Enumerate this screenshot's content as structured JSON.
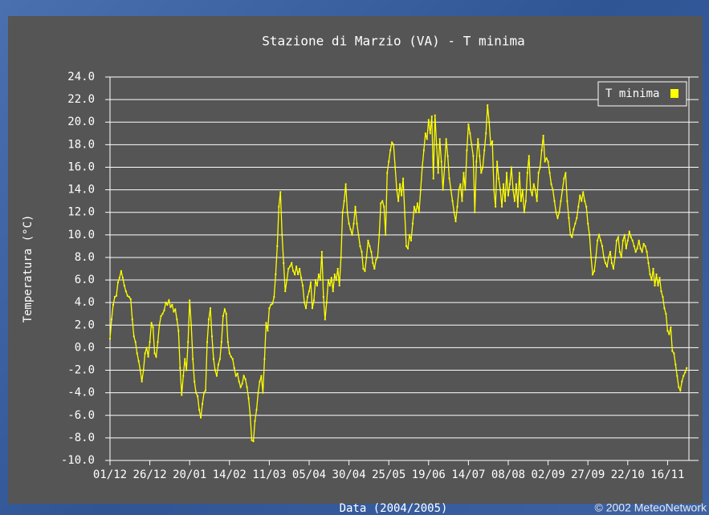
{
  "chart_data": {
    "type": "line",
    "title": "Stazione di Marzio (VA) - T minima",
    "x_label": "Data (2004/2005)",
    "y_label": "Temperatura (°C)",
    "credit": "© 2002 MeteoNetwork",
    "legend": "top-right",
    "grid": true,
    "ylim": [
      -10,
      24
    ],
    "yticks": [
      {
        "value": -10,
        "label": "-10.0"
      },
      {
        "value": -8,
        "label": "-8.0"
      },
      {
        "value": -6,
        "label": "-6.0"
      },
      {
        "value": -4,
        "label": "-4.0"
      },
      {
        "value": -2,
        "label": "-2.0"
      },
      {
        "value": 0,
        "label": "0.0"
      },
      {
        "value": 2,
        "label": "2.0"
      },
      {
        "value": 4,
        "label": "4.0"
      },
      {
        "value": 6,
        "label": "6.0"
      },
      {
        "value": 8,
        "label": "8.0"
      },
      {
        "value": 10,
        "label": "10.0"
      },
      {
        "value": 12,
        "label": "12.0"
      },
      {
        "value": 14,
        "label": "14.0"
      },
      {
        "value": 16,
        "label": "16.0"
      },
      {
        "value": 18,
        "label": "18.0"
      },
      {
        "value": 20,
        "label": "20.0"
      },
      {
        "value": 22,
        "label": "22.0"
      },
      {
        "value": 24,
        "label": "24.0"
      }
    ],
    "categories": [
      "01/12",
      null,
      null,
      null,
      null,
      null,
      null,
      null,
      null,
      null,
      null,
      null,
      null,
      null,
      null,
      null,
      null,
      null,
      null,
      null,
      null,
      null,
      null,
      null,
      null,
      "26/12",
      null,
      null,
      null,
      null,
      null,
      null,
      null,
      null,
      null,
      null,
      null,
      null,
      null,
      null,
      null,
      null,
      null,
      null,
      null,
      null,
      null,
      null,
      null,
      null,
      "20/01",
      null,
      null,
      null,
      null,
      null,
      null,
      null,
      null,
      null,
      null,
      null,
      null,
      null,
      null,
      null,
      null,
      null,
      null,
      null,
      null,
      null,
      null,
      null,
      null,
      "14/02",
      null,
      null,
      null,
      null,
      null,
      null,
      null,
      null,
      null,
      null,
      null,
      null,
      null,
      null,
      null,
      null,
      null,
      null,
      null,
      null,
      null,
      null,
      null,
      null,
      "11/03",
      null,
      null,
      null,
      null,
      null,
      null,
      null,
      null,
      null,
      null,
      null,
      null,
      null,
      null,
      null,
      null,
      null,
      null,
      null,
      null,
      null,
      null,
      null,
      null,
      "05/04",
      null,
      null,
      null,
      null,
      null,
      null,
      null,
      null,
      null,
      null,
      null,
      null,
      null,
      null,
      null,
      null,
      null,
      null,
      null,
      null,
      null,
      null,
      null,
      null,
      "30/04",
      null,
      null,
      null,
      null,
      null,
      null,
      null,
      null,
      null,
      null,
      null,
      null,
      null,
      null,
      null,
      null,
      null,
      null,
      null,
      null,
      null,
      null,
      null,
      null,
      "25/05",
      null,
      null,
      null,
      null,
      null,
      null,
      null,
      null,
      null,
      null,
      null,
      null,
      null,
      null,
      null,
      null,
      null,
      null,
      null,
      null,
      null,
      null,
      null,
      null,
      "19/06",
      null,
      null,
      null,
      null,
      null,
      null,
      null,
      null,
      null,
      null,
      null,
      null,
      null,
      null,
      null,
      null,
      null,
      null,
      null,
      null,
      null,
      null,
      null,
      null,
      "14/07",
      null,
      null,
      null,
      null,
      null,
      null,
      null,
      null,
      null,
      null,
      null,
      null,
      null,
      null,
      null,
      null,
      null,
      null,
      null,
      null,
      null,
      null,
      null,
      null,
      "08/08",
      null,
      null,
      null,
      null,
      null,
      null,
      null,
      null,
      null,
      null,
      null,
      null,
      null,
      null,
      null,
      null,
      null,
      null,
      null,
      null,
      null,
      null,
      null,
      null,
      "02/09",
      null,
      null,
      null,
      null,
      null,
      null,
      null,
      null,
      null,
      null,
      null,
      null,
      null,
      null,
      null,
      null,
      null,
      null,
      null,
      null,
      null,
      null,
      null,
      null,
      "27/09",
      null,
      null,
      null,
      null,
      null,
      null,
      null,
      null,
      null,
      null,
      null,
      null,
      null,
      null,
      null,
      null,
      null,
      null,
      null,
      null,
      null,
      null,
      null,
      null,
      "22/10",
      null,
      null,
      null,
      null,
      null,
      null,
      null,
      null,
      null,
      null,
      null,
      null,
      null,
      null,
      null,
      null,
      null,
      null,
      null,
      null,
      null,
      null,
      null,
      null,
      "16/11",
      null,
      null,
      null,
      null,
      null,
      null,
      null,
      null,
      null,
      null,
      null,
      null
    ],
    "series": [
      {
        "name": "T minima",
        "color": "#ffff00",
        "values": [
          0.8,
          2.5,
          3.8,
          4.5,
          4.6,
          5.8,
          6.2,
          6.8,
          6.2,
          5.5,
          5.0,
          4.6,
          4.5,
          4.3,
          2.5,
          1.0,
          0.5,
          -0.5,
          -1.2,
          -2.0,
          -3.0,
          -2.0,
          -0.5,
          0.0,
          -0.8,
          0.5,
          2.2,
          1.8,
          -0.5,
          -0.8,
          0.5,
          2.0,
          2.8,
          3.0,
          3.3,
          4.0,
          3.8,
          4.2,
          3.6,
          3.8,
          3.2,
          3.4,
          2.5,
          1.5,
          -1.8,
          -4.2,
          -2.5,
          -1.0,
          -2.0,
          0.5,
          4.2,
          2.0,
          -1.0,
          -3.0,
          -4.0,
          -4.3,
          -5.5,
          -6.2,
          -5.0,
          -4.0,
          -3.8,
          0.5,
          2.5,
          3.5,
          1.0,
          -1.0,
          -2.0,
          -2.5,
          -1.5,
          -1.0,
          0.5,
          2.8,
          3.4,
          3.0,
          0.5,
          -0.5,
          -0.8,
          -1.0,
          -1.8,
          -2.5,
          -2.3,
          -3.0,
          -3.5,
          -3.2,
          -2.5,
          -2.8,
          -3.5,
          -4.5,
          -6.0,
          -8.2,
          -8.3,
          -6.5,
          -5.5,
          -4.0,
          -3.0,
          -2.5,
          -4.0,
          -1.0,
          2.2,
          1.5,
          3.5,
          3.8,
          3.9,
          4.5,
          6.5,
          9.0,
          12.5,
          13.8,
          10.0,
          7.5,
          5.0,
          6.0,
          7.0,
          7.2,
          7.5,
          6.8,
          6.5,
          7.2,
          6.5,
          7.0,
          6.2,
          5.5,
          4.0,
          3.5,
          4.5,
          5.0,
          5.8,
          3.5,
          4.2,
          6.0,
          5.5,
          6.5,
          6.0,
          8.5,
          4.5,
          2.5,
          4.0,
          6.0,
          5.5,
          6.2,
          5.0,
          6.5,
          6.0,
          7.0,
          5.5,
          8.0,
          12.0,
          13.0,
          14.5,
          12.0,
          11.0,
          10.5,
          10.0,
          11.0,
          12.5,
          11.0,
          10.0,
          9.0,
          8.5,
          7.0,
          6.8,
          8.0,
          9.5,
          9.0,
          8.5,
          7.5,
          7.0,
          7.8,
          8.0,
          10.0,
          12.8,
          13.0,
          12.5,
          10.0,
          15.5,
          16.5,
          17.5,
          18.2,
          18.0,
          16.0,
          14.0,
          13.0,
          14.5,
          13.5,
          15.0,
          12.0,
          9.0,
          8.8,
          10.0,
          9.5,
          11.0,
          12.5,
          12.0,
          12.8,
          12.0,
          14.0,
          16.0,
          17.5,
          19.0,
          18.5,
          20.2,
          19.0,
          20.5,
          15.0,
          20.6,
          18.0,
          15.5,
          18.5,
          16.5,
          14.0,
          16.0,
          18.5,
          17.0,
          15.0,
          14.0,
          13.0,
          12.0,
          11.2,
          12.5,
          14.0,
          14.5,
          13.0,
          15.5,
          14.0,
          17.5,
          19.8,
          19.0,
          18.0,
          17.0,
          12.0,
          16.5,
          18.5,
          17.0,
          15.5,
          16.0,
          17.5,
          19.0,
          21.5,
          20.0,
          18.0,
          18.3,
          14.0,
          12.5,
          16.5,
          15.0,
          14.0,
          12.5,
          14.5,
          13.0,
          15.5,
          13.5,
          14.5,
          16.0,
          14.0,
          13.0,
          14.5,
          12.5,
          15.5,
          13.0,
          14.0,
          12.0,
          13.0,
          15.5,
          17.0,
          14.0,
          13.5,
          14.5,
          14.0,
          13.0,
          15.5,
          16.0,
          17.5,
          18.8,
          16.5,
          16.8,
          16.5,
          15.5,
          14.5,
          14.0,
          13.0,
          12.0,
          11.5,
          12.0,
          13.0,
          14.0,
          15.0,
          15.5,
          13.0,
          11.5,
          10.0,
          9.8,
          10.5,
          11.0,
          11.5,
          12.5,
          13.5,
          13.0,
          13.8,
          13.0,
          12.5,
          11.0,
          10.0,
          8.0,
          6.5,
          6.8,
          8.0,
          9.5,
          10.0,
          9.5,
          9.0,
          8.0,
          7.5,
          7.2,
          8.0,
          8.5,
          7.5,
          7.0,
          8.0,
          9.5,
          9.8,
          8.5,
          8.0,
          9.5,
          10.0,
          8.8,
          9.5,
          10.3,
          9.8,
          9.5,
          9.0,
          8.5,
          8.8,
          9.5,
          8.8,
          8.5,
          9.2,
          9.0,
          8.5,
          7.5,
          6.5,
          6.0,
          7.0,
          5.5,
          6.5,
          5.5,
          6.2,
          5.0,
          4.5,
          3.5,
          3.0,
          1.5,
          1.2,
          1.8,
          -0.3,
          -0.5,
          -1.5,
          -2.5,
          -3.5,
          -3.8,
          -3.0,
          -2.5,
          -2.2,
          -1.8
        ]
      }
    ]
  }
}
